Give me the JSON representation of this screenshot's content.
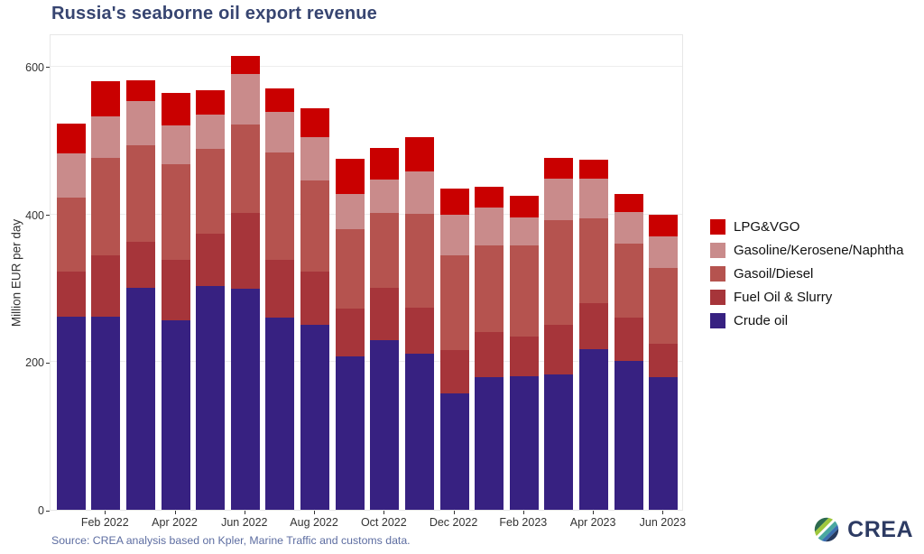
{
  "chart_data": {
    "type": "bar",
    "stacked": true,
    "title": "Russia's seaborne oil export revenue",
    "xlabel": "",
    "ylabel": "Million EUR per day",
    "ylim": [
      0,
      645
    ],
    "y_ticks": [
      0,
      200,
      400,
      600
    ],
    "grid": "horizontal-only",
    "legend_position": "right",
    "categories": [
      "Jan 2022",
      "Feb 2022",
      "Mar 2022",
      "Apr 2022",
      "May 2022",
      "Jun 2022",
      "Jul 2022",
      "Aug 2022",
      "Sep 2022",
      "Oct 2022",
      "Nov 2022",
      "Dec 2022",
      "Jan 2023",
      "Feb 2023",
      "Mar 2023",
      "Apr 2023",
      "May 2023",
      "Jun 2023"
    ],
    "x_tick_labels": [
      "Feb 2022",
      "Apr 2022",
      "Jun 2022",
      "Aug 2022",
      "Oct 2022",
      "Dec 2022",
      "Feb 2023",
      "Apr 2023",
      "Jun 2023"
    ],
    "series": [
      {
        "name": "LPG&VGO",
        "color": "#c90000",
        "values": [
          40,
          47,
          28,
          44,
          33,
          24,
          32,
          39,
          47,
          43,
          47,
          35,
          29,
          29,
          28,
          26,
          25,
          30
        ]
      },
      {
        "name": "Gasoline/Kerosene/Naphtha",
        "color": "#c98b8b",
        "values": [
          60,
          56,
          60,
          52,
          46,
          68,
          55,
          59,
          48,
          45,
          57,
          55,
          51,
          38,
          56,
          53,
          43,
          42
        ]
      },
      {
        "name": "Gasoil/Diesel",
        "color": "#b5534f",
        "values": [
          100,
          132,
          130,
          130,
          115,
          120,
          146,
          123,
          108,
          102,
          127,
          129,
          117,
          124,
          142,
          115,
          100,
          103
        ]
      },
      {
        "name": "Fuel Oil & Slurry",
        "color": "#a6353a",
        "values": [
          62,
          83,
          63,
          81,
          71,
          103,
          78,
          72,
          64,
          70,
          63,
          58,
          61,
          53,
          67,
          62,
          58,
          46
        ]
      },
      {
        "name": "Crude oil",
        "color": "#372181",
        "values": [
          261,
          262,
          300,
          257,
          303,
          299,
          260,
          251,
          208,
          230,
          211,
          158,
          180,
          181,
          183,
          218,
          202,
          179
        ]
      }
    ],
    "totals": [
      523,
      580,
      581,
      564,
      568,
      614,
      571,
      544,
      475,
      490,
      505,
      435,
      438,
      425,
      476,
      474,
      428,
      400
    ]
  },
  "footer": {
    "source": "Source: CREA analysis based on Kpler, Marine Traffic and customs data.",
    "logo_text": "CREA"
  }
}
